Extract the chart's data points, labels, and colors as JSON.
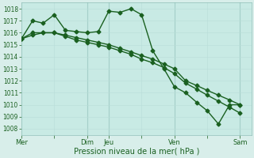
{
  "xlabel": "Pression niveau de la mer( hPa )",
  "background_color": "#d8eeea",
  "plot_bg_color": "#c8eae4",
  "grid_color_minor": "#b8ddd8",
  "grid_color_major": "#90c0b8",
  "line_color": "#1a6020",
  "ylim": [
    1007.5,
    1018.5
  ],
  "yticks": [
    1008,
    1009,
    1010,
    1011,
    1012,
    1013,
    1014,
    1015,
    1016,
    1017,
    1018
  ],
  "xtick_labels": [
    "Mer",
    "",
    "Dim",
    "Jeu",
    "",
    "Ven",
    "",
    "Sam"
  ],
  "xtick_positions": [
    0,
    0.5,
    1.0,
    1.33,
    1.83,
    2.33,
    2.83,
    3.33
  ],
  "xlim": [
    0,
    3.5
  ],
  "vline_positions": [
    1.0,
    1.33,
    2.33,
    3.33
  ],
  "line1_x": [
    0.0,
    0.17,
    0.33,
    0.5,
    0.67,
    0.83,
    1.0,
    1.17,
    1.33,
    1.5,
    1.67,
    1.83,
    2.0,
    2.17,
    2.33,
    2.5,
    2.67,
    2.83,
    3.0,
    3.17,
    3.33
  ],
  "line1_y": [
    1015.5,
    1017.0,
    1016.8,
    1017.5,
    1016.2,
    1016.1,
    1016.0,
    1016.1,
    1017.8,
    1017.7,
    1018.0,
    1017.5,
    1014.5,
    1013.0,
    1011.5,
    1011.0,
    1010.2,
    1009.5,
    1008.4,
    1010.0,
    1010.0
  ],
  "line2_x": [
    0.0,
    0.17,
    0.33,
    0.5,
    0.67,
    0.83,
    1.0,
    1.17,
    1.33,
    1.5,
    1.67,
    1.83,
    2.0,
    2.17,
    2.33,
    2.5,
    2.67,
    2.83,
    3.0,
    3.17,
    3.33
  ],
  "line2_y": [
    1015.5,
    1016.0,
    1016.0,
    1016.0,
    1015.8,
    1015.6,
    1015.4,
    1015.2,
    1015.0,
    1014.7,
    1014.4,
    1014.1,
    1013.8,
    1013.4,
    1013.0,
    1012.0,
    1011.6,
    1011.2,
    1010.8,
    1010.4,
    1010.0
  ],
  "line3_x": [
    0.0,
    0.17,
    0.33,
    0.5,
    0.67,
    0.83,
    1.0,
    1.17,
    1.33,
    1.5,
    1.67,
    1.83,
    2.0,
    2.17,
    2.33,
    2.5,
    2.67,
    2.83,
    3.0,
    3.17,
    3.33
  ],
  "line3_y": [
    1015.5,
    1015.8,
    1016.0,
    1016.0,
    1015.7,
    1015.4,
    1015.2,
    1015.0,
    1014.8,
    1014.5,
    1014.2,
    1013.8,
    1013.5,
    1013.1,
    1012.6,
    1011.8,
    1011.3,
    1010.8,
    1010.3,
    1009.8,
    1009.3
  ],
  "marker": "D",
  "marker_size": 2.5,
  "linewidth": 1.0
}
